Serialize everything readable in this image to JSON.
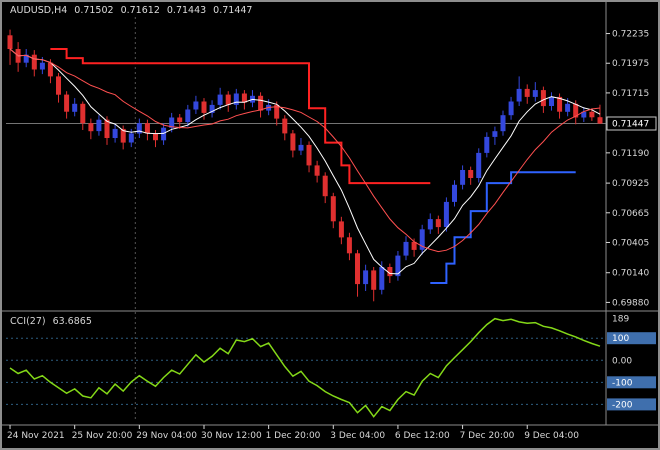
{
  "header": {
    "symbol_period": "AUDUSD,H4",
    "open": "0.71502",
    "high": "0.71612",
    "low": "0.71443",
    "close": "0.71447"
  },
  "indicator_label": {
    "name": "CCI(27)",
    "value": "63.6865"
  },
  "price_axis": {
    "ticks": [
      "0.72235",
      "0.71975",
      "0.71715",
      "0.71190",
      "0.70925",
      "0.70665",
      "0.70405",
      "0.70140",
      "0.69880"
    ],
    "current_price": "0.71447"
  },
  "time_axis": {
    "labels": [
      "24 Nov 2021",
      "25 Nov 20:00",
      "29 Nov 04:00",
      "30 Nov 12:00",
      "1 Dec 20:00",
      "3 Dec 04:00",
      "6 Dec 12:00",
      "7 Dec 20:00",
      "9 Dec 04:00"
    ]
  },
  "cci_axis": {
    "max": {
      "label": "189",
      "value": 189
    },
    "levels": [
      {
        "label": "100",
        "value": 100,
        "highlight": true
      },
      {
        "label": "0.00",
        "value": 0,
        "highlight": false
      },
      {
        "label": "-100",
        "value": -100,
        "highlight": true
      },
      {
        "label": "-200",
        "value": -200,
        "highlight": true
      }
    ]
  },
  "colors": {
    "background": "#000000",
    "frame": "#8c8c8c",
    "axis_text": "#d8d8d8",
    "candle_up": "#3448dd",
    "candle_down": "#e03030",
    "ma_fast": "#ffffff",
    "ma_slow": "#ff5050",
    "trend_stop_down": "#ff2222",
    "trend_stop_up": "#2f62ff",
    "cci_line": "#84d818",
    "cci_level_line": "#2e5d80",
    "level_box": "#3f6fad",
    "price_line": "#9b9b9b",
    "price_box_border": "#c8c8c8",
    "separator": "#555555"
  },
  "chart_data": {
    "type": "candlestick",
    "title": "AUDUSD,H4",
    "symbol": "AUDUSD",
    "timeframe": "H4",
    "current_price": 0.71447,
    "price_range": [
      0.69831,
      0.7238
    ],
    "x_labels": [
      "24 Nov 2021",
      "25 Nov 20:00",
      "29 Nov 04:00",
      "30 Nov 12:00",
      "1 Dec 20:00",
      "3 Dec 04:00",
      "6 Dec 12:00",
      "7 Dec 20:00",
      "9 Dec 04:00"
    ],
    "x_label_bar_indices": [
      0,
      8,
      16,
      24,
      32,
      40,
      48,
      56,
      64
    ],
    "week_separator_bar": 16,
    "ma_fast_period": 6,
    "ma_slow_period": 14,
    "candles_ohlc": [
      [
        0.7222,
        0.7227,
        0.7196,
        0.721
      ],
      [
        0.721,
        0.7216,
        0.719,
        0.7198
      ],
      [
        0.7198,
        0.721,
        0.7194,
        0.7205
      ],
      [
        0.7205,
        0.7209,
        0.7186,
        0.7192
      ],
      [
        0.7192,
        0.7203,
        0.7188,
        0.7198
      ],
      [
        0.7198,
        0.7201,
        0.718,
        0.7186
      ],
      [
        0.7186,
        0.7189,
        0.7163,
        0.717
      ],
      [
        0.717,
        0.7173,
        0.7149,
        0.7155
      ],
      [
        0.7155,
        0.7167,
        0.7151,
        0.7162
      ],
      [
        0.7162,
        0.7164,
        0.7139,
        0.7145
      ],
      [
        0.7145,
        0.7149,
        0.7131,
        0.7138
      ],
      [
        0.7138,
        0.7152,
        0.7134,
        0.7148
      ],
      [
        0.7148,
        0.7151,
        0.7126,
        0.7132
      ],
      [
        0.7132,
        0.7144,
        0.7128,
        0.714
      ],
      [
        0.714,
        0.7143,
        0.7122,
        0.7128
      ],
      [
        0.7128,
        0.714,
        0.7124,
        0.7136
      ],
      [
        0.7136,
        0.7149,
        0.7132,
        0.7145
      ],
      [
        0.7145,
        0.7148,
        0.713,
        0.7136
      ],
      [
        0.7136,
        0.7139,
        0.7124,
        0.713
      ],
      [
        0.713,
        0.7145,
        0.7126,
        0.7141
      ],
      [
        0.7141,
        0.7154,
        0.7137,
        0.715
      ],
      [
        0.715,
        0.7153,
        0.714,
        0.7146
      ],
      [
        0.7146,
        0.7161,
        0.7142,
        0.7157
      ],
      [
        0.7157,
        0.7169,
        0.7153,
        0.7164
      ],
      [
        0.7164,
        0.7167,
        0.7148,
        0.7154
      ],
      [
        0.7154,
        0.7165,
        0.715,
        0.7161
      ],
      [
        0.7161,
        0.7176,
        0.7157,
        0.717
      ],
      [
        0.717,
        0.7173,
        0.7155,
        0.7161
      ],
      [
        0.7161,
        0.7175,
        0.7157,
        0.7171
      ],
      [
        0.7171,
        0.7174,
        0.7157,
        0.7163
      ],
      [
        0.7163,
        0.7174,
        0.7159,
        0.7169
      ],
      [
        0.7169,
        0.7172,
        0.715,
        0.7156
      ],
      [
        0.7156,
        0.7166,
        0.7152,
        0.7161
      ],
      [
        0.7161,
        0.7164,
        0.7143,
        0.7149
      ],
      [
        0.7149,
        0.7152,
        0.713,
        0.7136
      ],
      [
        0.7136,
        0.7139,
        0.7115,
        0.7121
      ],
      [
        0.7121,
        0.7132,
        0.7117,
        0.7126
      ],
      [
        0.7126,
        0.7129,
        0.7102,
        0.7108
      ],
      [
        0.7108,
        0.7112,
        0.7093,
        0.7099
      ],
      [
        0.7099,
        0.7102,
        0.7075,
        0.7081
      ],
      [
        0.7081,
        0.7084,
        0.7053,
        0.7059
      ],
      [
        0.7059,
        0.7063,
        0.7039,
        0.7045
      ],
      [
        0.7045,
        0.7049,
        0.7025,
        0.7031
      ],
      [
        0.7031,
        0.7034,
        0.6993,
        0.7004
      ],
      [
        0.7004,
        0.7021,
        0.6998,
        0.7016
      ],
      [
        0.7016,
        0.7019,
        0.6989,
        0.6999
      ],
      [
        0.6999,
        0.7024,
        0.6995,
        0.7019
      ],
      [
        0.7019,
        0.7022,
        0.7005,
        0.7011
      ],
      [
        0.7011,
        0.7033,
        0.7007,
        0.7029
      ],
      [
        0.7029,
        0.7046,
        0.7025,
        0.7041
      ],
      [
        0.7041,
        0.7044,
        0.7028,
        0.7034
      ],
      [
        0.7034,
        0.7056,
        0.703,
        0.7052
      ],
      [
        0.7052,
        0.7066,
        0.7048,
        0.7061
      ],
      [
        0.7061,
        0.7064,
        0.7048,
        0.7054
      ],
      [
        0.7054,
        0.708,
        0.705,
        0.7076
      ],
      [
        0.7076,
        0.7095,
        0.7072,
        0.7091
      ],
      [
        0.7091,
        0.7108,
        0.7087,
        0.7104
      ],
      [
        0.7104,
        0.7107,
        0.7091,
        0.7097
      ],
      [
        0.7097,
        0.7123,
        0.7093,
        0.7119
      ],
      [
        0.7119,
        0.7137,
        0.7115,
        0.7133
      ],
      [
        0.7133,
        0.7142,
        0.7126,
        0.7138
      ],
      [
        0.7138,
        0.7156,
        0.7134,
        0.7152
      ],
      [
        0.7152,
        0.7168,
        0.7148,
        0.7164
      ],
      [
        0.7164,
        0.7186,
        0.716,
        0.7175
      ],
      [
        0.7175,
        0.7179,
        0.7162,
        0.7168
      ],
      [
        0.7168,
        0.7181,
        0.7164,
        0.7174
      ],
      [
        0.7174,
        0.7177,
        0.7154,
        0.716
      ],
      [
        0.716,
        0.7172,
        0.7156,
        0.7168
      ],
      [
        0.7168,
        0.7171,
        0.7149,
        0.7155
      ],
      [
        0.7155,
        0.7167,
        0.7151,
        0.7162
      ],
      [
        0.7162,
        0.7165,
        0.7144,
        0.715
      ],
      [
        0.715,
        0.7159,
        0.7146,
        0.7155
      ],
      [
        0.7155,
        0.7158,
        0.7147,
        0.71502
      ],
      [
        0.71502,
        0.71612,
        0.71443,
        0.71447
      ]
    ],
    "trend_stop_red_segments": [
      [
        5,
        7,
        0.721
      ],
      [
        7,
        9,
        0.7202
      ],
      [
        9,
        37,
        0.71975
      ],
      [
        37,
        39,
        0.7158
      ],
      [
        39,
        41,
        0.7128
      ],
      [
        41,
        42,
        0.7108
      ],
      [
        42,
        52,
        0.70925
      ]
    ],
    "trend_stop_blue_segments": [
      [
        52,
        54,
        0.7005
      ],
      [
        54,
        55,
        0.7022
      ],
      [
        55,
        57,
        0.7045
      ],
      [
        57,
        59,
        0.7068
      ],
      [
        59,
        62,
        0.70925
      ],
      [
        62,
        70,
        0.7102
      ]
    ],
    "cci": {
      "period": 27,
      "last_value": 63.6865,
      "range": [
        -280,
        210
      ],
      "level_lines": [
        100,
        0,
        -100,
        -200
      ],
      "values": [
        -35,
        -60,
        -45,
        -85,
        -70,
        -100,
        -125,
        -150,
        -130,
        -162,
        -170,
        -125,
        -152,
        -108,
        -140,
        -98,
        -70,
        -95,
        -118,
        -78,
        -45,
        -62,
        -18,
        25,
        -8,
        18,
        55,
        30,
        92,
        85,
        98,
        62,
        78,
        25,
        -28,
        -72,
        -50,
        -95,
        -115,
        -142,
        -162,
        -178,
        -192,
        -238,
        -205,
        -256,
        -210,
        -228,
        -178,
        -142,
        -158,
        -95,
        -60,
        -78,
        -25,
        12,
        48,
        85,
        125,
        162,
        189,
        180,
        186,
        174,
        168,
        171,
        154,
        147,
        134,
        119,
        106,
        90,
        76,
        63.6865
      ]
    }
  }
}
